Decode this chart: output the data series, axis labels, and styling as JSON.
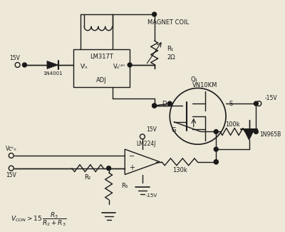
{
  "bg_color": "#ede8d8",
  "line_color": "#1a1a1a",
  "components": {
    "lm317_label": "LM317T",
    "vin_label": "Vᴵₙ",
    "vout_label": "Vₒᵁᴴ",
    "adj_label": "ADJ",
    "magnet_coil_label": "MAGNET COIL",
    "q1_label": "Q₁",
    "vn10km_label": "VN10KM",
    "r1_label": "R₁",
    "r1_val": "2Ω",
    "r2_label": "R₂",
    "r3_label": "R₃",
    "r100k_label": "100k",
    "r130k_label": "130k",
    "zener_label": "1N965B",
    "diode_label": "1N4001",
    "lm224_label": "LM224J",
    "v15_1": "15V",
    "v15_2": "15V",
    "v15_3": "15V",
    "vneg15_1": "-15V",
    "vneg15_2": "-15V",
    "vcon_label": "Vᴄᵏₙ",
    "v15_bot": "15V",
    "d_label": "D",
    "s_label": "S",
    "g_label": "G",
    "formula": "V_{CON} > 15 \\frac{R_3}{R_2 + R_3}"
  }
}
